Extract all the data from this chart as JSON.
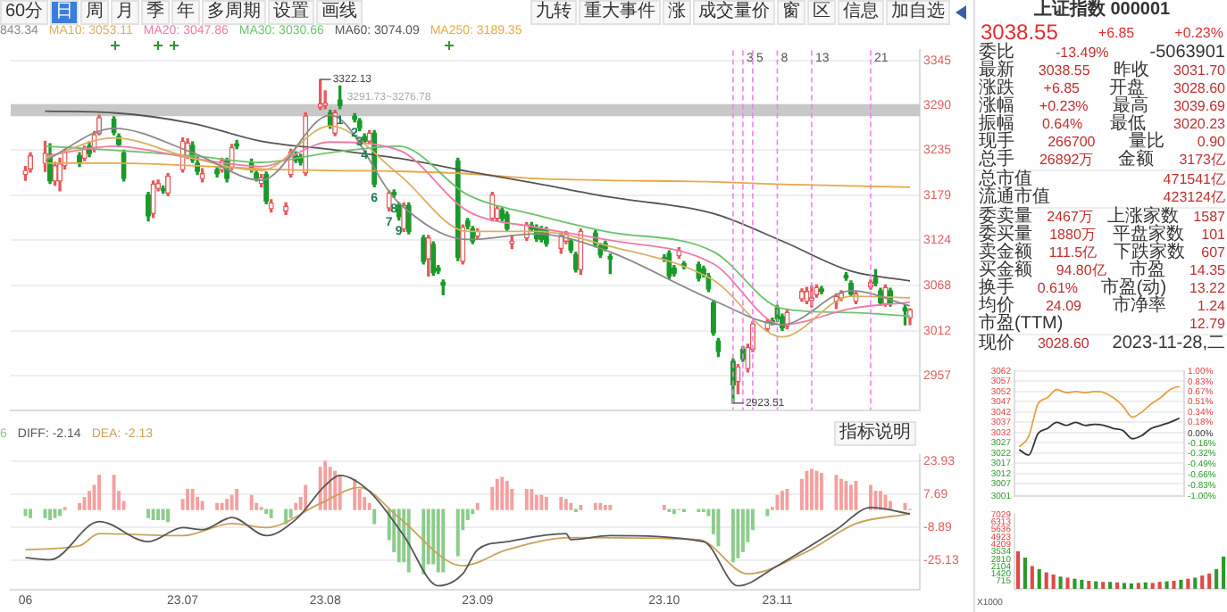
{
  "chart_data": [
    {
      "type": "other",
      "annotations": [
        "60分",
        "日",
        "周",
        "月",
        "季",
        "年",
        "多周期",
        "设置",
        "画线"
      ]
    },
    {
      "type": "other",
      "annotations": [
        "九转",
        "重大事件",
        "涨",
        "成交量价",
        "窗",
        "区",
        "信息",
        "加自选"
      ]
    },
    {
      "type": "candlestick",
      "legend": "top left",
      "grid": "y",
      "tick_labels": "y",
      "xlim": [
        "2023-05-29",
        "2023-11-30"
      ],
      "ylim": [
        2915,
        3358
      ],
      "yticks": [
        2957,
        3012,
        3068,
        3124,
        3179,
        3235,
        3290,
        3345
      ],
      "x": [
        "2023-06-01",
        "2023-06-02",
        "2023-06-05",
        "2023-06-06",
        "2023-06-07",
        "2023-06-08",
        "2023-06-09",
        "2023-06-12",
        "2023-06-13",
        "2023-06-14",
        "2023-06-15",
        "2023-06-16",
        "2023-06-19",
        "2023-06-20",
        "2023-06-21",
        "2023-06-26",
        "2023-06-27",
        "2023-06-28",
        "2023-06-29",
        "2023-06-30",
        "2023-07-03",
        "2023-07-04",
        "2023-07-05",
        "2023-07-06",
        "2023-07-07",
        "2023-07-10",
        "2023-07-11",
        "2023-07-12",
        "2023-07-13",
        "2023-07-14",
        "2023-07-17",
        "2023-07-18",
        "2023-07-19",
        "2023-07-20",
        "2023-07-21",
        "2023-07-24",
        "2023-07-25",
        "2023-07-26",
        "2023-07-27",
        "2023-07-28",
        "2023-07-31",
        "2023-08-01",
        "2023-08-02",
        "2023-08-03",
        "2023-08-04",
        "2023-08-07",
        "2023-08-08",
        "2023-08-09",
        "2023-08-10",
        "2023-08-11",
        "2023-08-14",
        "2023-08-15",
        "2023-08-16",
        "2023-08-17",
        "2023-08-18",
        "2023-08-21",
        "2023-08-22",
        "2023-08-23",
        "2023-08-24",
        "2023-08-25",
        "2023-08-28",
        "2023-08-29",
        "2023-08-30",
        "2023-08-31",
        "2023-09-01",
        "2023-09-04",
        "2023-09-05",
        "2023-09-06",
        "2023-09-07",
        "2023-09-08",
        "2023-09-11",
        "2023-09-12",
        "2023-09-13",
        "2023-09-14",
        "2023-09-15",
        "2023-09-18",
        "2023-09-19",
        "2023-09-20",
        "2023-09-21",
        "2023-09-22",
        "2023-09-25",
        "2023-09-26",
        "2023-09-27",
        "2023-09-28",
        "2023-10-09",
        "2023-10-10",
        "2023-10-11",
        "2023-10-12",
        "2023-10-13",
        "2023-10-16",
        "2023-10-17",
        "2023-10-18",
        "2023-10-19",
        "2023-10-20",
        "2023-10-23",
        "2023-10-24",
        "2023-10-25",
        "2023-10-26",
        "2023-10-27",
        "2023-10-30",
        "2023-10-31",
        "2023-11-01",
        "2023-11-02",
        "2023-11-03",
        "2023-11-06",
        "2023-11-07",
        "2023-11-08",
        "2023-11-09",
        "2023-11-10",
        "2023-11-13",
        "2023-11-14",
        "2023-11-15",
        "2023-11-16",
        "2023-11-17",
        "2023-11-20",
        "2023-11-21",
        "2023-11-22",
        "2023-11-23",
        "2023-11-24",
        "2023-11-27",
        "2023-11-28"
      ],
      "ohlc": [
        [
          3205,
          3215,
          3198,
          3210
        ],
        [
          3212,
          3232,
          3208,
          3228
        ],
        [
          3219,
          3246,
          3209,
          3231
        ],
        [
          3230,
          3243,
          3194,
          3197
        ],
        [
          3197,
          3220,
          3192,
          3216
        ],
        [
          3197,
          3225,
          3185,
          3218
        ],
        [
          3216,
          3236,
          3212,
          3232
        ],
        [
          3228,
          3232,
          3215,
          3219
        ],
        [
          3225,
          3240,
          3222,
          3236
        ],
        [
          3240,
          3245,
          3227,
          3231
        ],
        [
          3236,
          3258,
          3233,
          3254
        ],
        [
          3256,
          3278,
          3254,
          3275
        ],
        [
          3273,
          3276,
          3254,
          3257
        ],
        [
          3252,
          3255,
          3239,
          3242
        ],
        [
          3232,
          3235,
          3197,
          3200
        ],
        [
          3180,
          3183,
          3148,
          3154
        ],
        [
          3157,
          3197,
          3152,
          3193
        ],
        [
          3188,
          3198,
          3185,
          3194
        ],
        [
          3188,
          3191,
          3182,
          3185
        ],
        [
          3182,
          3206,
          3179,
          3203
        ],
        [
          3211,
          3250,
          3208,
          3246
        ],
        [
          3228,
          3249,
          3225,
          3244
        ],
        [
          3241,
          3245,
          3220,
          3223
        ],
        [
          3219,
          3226,
          3205,
          3209
        ],
        [
          3200,
          3212,
          3196,
          3206
        ],
        [
          3211,
          3214,
          3202,
          3206
        ],
        [
          3211,
          3225,
          3208,
          3222
        ],
        [
          3222,
          3225,
          3196,
          3200
        ],
        [
          3214,
          3242,
          3211,
          3238
        ],
        [
          3243,
          3247,
          3237,
          3240
        ],
        [
          3220,
          3224,
          3208,
          3212
        ],
        [
          3207,
          3211,
          3197,
          3201
        ],
        [
          3194,
          3205,
          3190,
          3201
        ],
        [
          3205,
          3208,
          3169,
          3172
        ],
        [
          3163,
          3174,
          3159,
          3170
        ],
        [
          3160,
          3170,
          3156,
          3166
        ],
        [
          3205,
          3236,
          3202,
          3233
        ],
        [
          3229,
          3233,
          3220,
          3223
        ],
        [
          3227,
          3230,
          3217,
          3220
        ],
        [
          3207,
          3281,
          3204,
          3277
        ],
        [
          3288,
          3322.13,
          3285,
          3292
        ],
        [
          3290,
          3308,
          3286,
          3293
        ],
        [
          3281,
          3284,
          3262,
          3265
        ],
        [
          3256,
          3284,
          3253,
          3281
        ],
        [
          3297,
          3314,
          3286,
          3290
        ],
        [
          3277,
          3280,
          3270,
          3273
        ],
        [
          3271,
          3274,
          3259,
          3262
        ],
        [
          3252,
          3255,
          3243,
          3246
        ],
        [
          3246,
          3259,
          3243,
          3256
        ],
        [
          3256,
          3259,
          3190,
          3193
        ],
        [
          3164,
          3185,
          3160,
          3182
        ],
        [
          3183,
          3186,
          3177,
          3180
        ],
        [
          3167,
          3170,
          3149,
          3153
        ],
        [
          3138,
          3170,
          3135,
          3167
        ],
        [
          3167,
          3170,
          3132,
          3135
        ],
        [
          3127,
          3130,
          3095,
          3098
        ],
        [
          3101,
          3130,
          3080,
          3127
        ],
        [
          3119,
          3122,
          3081,
          3084
        ],
        [
          3090,
          3093,
          3083,
          3086
        ],
        [
          3072,
          3075,
          3057,
          3069
        ],
        [
          3222,
          3225,
          3099,
          3103
        ],
        [
          3098,
          3143,
          3095,
          3140
        ],
        [
          3148,
          3151,
          3138,
          3141
        ],
        [
          3138,
          3141,
          3120,
          3123
        ],
        [
          3129,
          3138,
          3126,
          3135
        ],
        [
          3151,
          3183,
          3148,
          3180
        ],
        [
          3151,
          3166,
          3148,
          3163
        ],
        [
          3161,
          3164,
          3148,
          3151
        ],
        [
          3156,
          3159,
          3135,
          3138
        ],
        [
          3120,
          3130,
          3114,
          3123
        ],
        [
          3127,
          3146,
          3124,
          3143
        ],
        [
          3143,
          3146,
          3135,
          3138
        ],
        [
          3140,
          3143,
          3123,
          3126
        ],
        [
          3138,
          3141,
          3122,
          3125
        ],
        [
          3137,
          3140,
          3117,
          3120
        ],
        [
          3114,
          3133,
          3108,
          3130
        ],
        [
          3123,
          3135,
          3120,
          3132
        ],
        [
          3123,
          3126,
          3109,
          3112
        ],
        [
          3106,
          3109,
          3085,
          3088
        ],
        [
          3088,
          3138,
          3082,
          3135
        ],
        [
          3133,
          3136,
          3116,
          3119
        ],
        [
          3117,
          3120,
          3103,
          3106
        ],
        [
          3120,
          3123,
          3111,
          3114
        ],
        [
          3104,
          3107,
          3083,
          3101
        ],
        [
          3103,
          3106,
          3098,
          3101
        ],
        [
          3108,
          3111,
          3077,
          3080
        ],
        [
          3090,
          3093,
          3080,
          3083
        ],
        [
          3105,
          3115,
          3102,
          3111
        ],
        [
          3095,
          3098,
          3089,
          3092
        ],
        [
          3094,
          3097,
          3074,
          3077
        ],
        [
          3089,
          3092,
          3079,
          3082
        ],
        [
          3080,
          3083,
          3061,
          3064
        ],
        [
          3047,
          3050,
          3007,
          3010
        ],
        [
          3000,
          3003,
          2981,
          2987
        ],
        [
          2975,
          2978,
          2923.51,
          2946
        ],
        [
          2950,
          2971,
          2935,
          2968
        ],
        [
          2990,
          2993,
          2975,
          2978
        ],
        [
          2966,
          2996,
          2962,
          2992
        ],
        [
          2990,
          3024,
          2987,
          3021
        ],
        [
          3015,
          3027,
          3012,
          3024
        ],
        [
          3025,
          3028,
          3020,
          3023
        ],
        [
          3041,
          3044,
          3024,
          3027
        ],
        [
          3030,
          3033,
          3013,
          3016
        ],
        [
          3018,
          3038,
          3015,
          3035
        ],
        [
          3052,
          3064,
          3049,
          3061
        ],
        [
          3049,
          3066,
          3046,
          3061
        ],
        [
          3050,
          3068,
          3042,
          3053
        ],
        [
          3057,
          3069,
          3054,
          3066
        ],
        [
          3064,
          3067,
          3058,
          3061
        ],
        [
          3049,
          3058,
          3040,
          3055
        ],
        [
          3053,
          3062,
          3050,
          3059
        ],
        [
          3081,
          3084,
          3075,
          3078
        ],
        [
          3071,
          3074,
          3055,
          3058
        ],
        [
          3049,
          3061,
          3046,
          3058
        ],
        [
          3067,
          3075,
          3064,
          3072
        ],
        [
          3078,
          3088,
          3068,
          3071
        ],
        [
          3062,
          3065,
          3044,
          3047
        ],
        [
          3046,
          3069,
          3043,
          3066
        ],
        [
          3062,
          3065,
          3043,
          3046
        ],
        [
          3041,
          3044,
          3020,
          3037
        ],
        [
          3028.6,
          3039.69,
          3020.23,
          3038.55
        ]
      ],
      "series": [
        {
          "type": "line",
          "name": "843.34",
          "color": "#8a8a8a",
          "x": [
            "2023-06-05",
            "2023-06-19",
            "2023-07-05",
            "2023-07-19",
            "2023-08-02",
            "2023-08-16",
            "2023-08-30",
            "2023-09-13",
            "2023-09-27",
            "2023-10-19",
            "2023-11-02",
            "2023-11-16",
            "2023-11-28"
          ],
          "values": [
            3222,
            3262,
            3232,
            3198,
            3278,
            3170,
            3125,
            3132,
            3112,
            3050,
            3020,
            3062,
            3043.34
          ]
        },
        {
          "type": "line",
          "name": "MA10: 3053.11",
          "color": "#d8b060",
          "x": [
            "2023-06-05",
            "2023-06-19",
            "2023-07-05",
            "2023-07-19",
            "2023-08-02",
            "2023-08-16",
            "2023-08-30",
            "2023-09-13",
            "2023-09-27",
            "2023-10-19",
            "2023-11-02",
            "2023-11-16",
            "2023-11-28"
          ],
          "values": [
            3225,
            3250,
            3225,
            3210,
            3265,
            3205,
            3135,
            3135,
            3118,
            3075,
            3005,
            3055,
            3053.11
          ]
        },
        {
          "type": "line",
          "name": "MA20: 3047.86",
          "color": "#f07aa8",
          "x": [
            "2023-06-05",
            "2023-06-19",
            "2023-07-05",
            "2023-07-19",
            "2023-08-02",
            "2023-08-16",
            "2023-08-30",
            "2023-09-13",
            "2023-09-27",
            "2023-10-19",
            "2023-11-02",
            "2023-11-16",
            "2023-11-28"
          ],
          "values": [
            3228,
            3240,
            3225,
            3215,
            3245,
            3235,
            3160,
            3140,
            3125,
            3095,
            3020,
            3040,
            3047.86
          ]
        },
        {
          "type": "line",
          "name": "MA30: 3030.66",
          "color": "#6cc46c",
          "x": [
            "2023-06-05",
            "2023-06-19",
            "2023-07-05",
            "2023-07-19",
            "2023-08-02",
            "2023-08-16",
            "2023-08-30",
            "2023-09-13",
            "2023-09-27",
            "2023-10-19",
            "2023-11-02",
            "2023-11-16",
            "2023-11-28"
          ],
          "values": [
            3240,
            3235,
            3228,
            3220,
            3232,
            3240,
            3180,
            3155,
            3135,
            3110,
            3040,
            3035,
            3030.66
          ]
        },
        {
          "type": "line",
          "name": "MA60: 3074.09",
          "color": "#555555",
          "x": [
            "2023-06-05",
            "2023-06-19",
            "2023-07-05",
            "2023-07-19",
            "2023-08-02",
            "2023-08-16",
            "2023-08-30",
            "2023-09-13",
            "2023-09-27",
            "2023-10-19",
            "2023-11-02",
            "2023-11-16",
            "2023-11-28"
          ],
          "values": [
            3283,
            3281,
            3268,
            3246,
            3236,
            3225,
            3209,
            3194,
            3178,
            3157,
            3123,
            3086,
            3074.09
          ]
        },
        {
          "type": "line",
          "name": "MA250: 3189.35",
          "color": "#e8a848",
          "x": [
            "2023-06-05",
            "2023-06-19",
            "2023-07-05",
            "2023-07-19",
            "2023-08-02",
            "2023-08-16",
            "2023-08-30",
            "2023-09-13",
            "2023-09-27",
            "2023-10-19",
            "2023-11-02",
            "2023-11-16",
            "2023-11-28"
          ],
          "values": [
            3219,
            3219,
            3216,
            3212,
            3210,
            3209,
            3206,
            3200,
            3198,
            3196,
            3193,
            3191,
            3189.35
          ]
        }
      ],
      "bands": [
        {
          "axis": "y",
          "from": 3276.78,
          "to": 3291.73,
          "label": "3291.73~3276.78",
          "color": "#c8c8c8"
        }
      ],
      "ref_lines": [
        {
          "axis": "x",
          "value": "2023-10-23",
          "label": null,
          "color": "#ee82ee",
          "line_style": "dashed"
        },
        {
          "axis": "x",
          "value": "2023-10-25",
          "label": "3",
          "color": "#ee82ee",
          "line_style": "dashed"
        },
        {
          "axis": "x",
          "value": "2023-10-27",
          "label": "5",
          "color": "#ee82ee",
          "line_style": "dashed"
        },
        {
          "axis": "x",
          "value": "2023-11-01",
          "label": "8",
          "color": "#ee82ee",
          "line_style": "dashed"
        },
        {
          "axis": "x",
          "value": "2023-11-08",
          "label": "13",
          "color": "#ee82ee",
          "line_style": "dashed"
        },
        {
          "axis": "x",
          "value": "2023-11-20",
          "label": "21",
          "color": "#ee82ee",
          "line_style": "dashed"
        }
      ],
      "annotations": [
        {
          "text": "3322.13",
          "x": "2023-07-31",
          "y": 3322.13
        },
        {
          "text": "2923.51",
          "x": "2023-10-23",
          "y": 2923.51
        },
        {
          "text": "1",
          "x": "2023-08-04",
          "y": 3286
        },
        {
          "text": "2",
          "x": "2023-08-07",
          "y": 3270
        },
        {
          "text": "3",
          "x": "2023-08-08",
          "y": 3259
        },
        {
          "text": "4",
          "x": "2023-08-09",
          "y": 3243
        },
        {
          "text": "6",
          "x": "2023-08-11",
          "y": 3190
        },
        {
          "text": "7",
          "x": "2023-08-14",
          "y": 3160
        },
        {
          "text": "8",
          "x": "2023-08-15",
          "y": 3177
        },
        {
          "text": "9",
          "x": "2023-08-16",
          "y": 3149
        }
      ]
    },
    {
      "type": "bar",
      "legend": "top left",
      "grid": "y",
      "xlim": [
        "2023-05-29",
        "2023-11-30"
      ],
      "ylim": [
        -40,
        27
      ],
      "yticks": [
        -25.13,
        -8.89,
        7.69,
        23.93
      ],
      "annotations": [
        "指标说明"
      ],
      "x": [
        "2023-06-01",
        "2023-06-02",
        "2023-06-05",
        "2023-06-06",
        "2023-06-07",
        "2023-06-08",
        "2023-06-09",
        "2023-06-12",
        "2023-06-13",
        "2023-06-14",
        "2023-06-15",
        "2023-06-16",
        "2023-06-19",
        "2023-06-20",
        "2023-06-21",
        "2023-06-26",
        "2023-06-27",
        "2023-06-28",
        "2023-06-29",
        "2023-06-30",
        "2023-07-03",
        "2023-07-04",
        "2023-07-05",
        "2023-07-06",
        "2023-07-07",
        "2023-07-10",
        "2023-07-11",
        "2023-07-12",
        "2023-07-13",
        "2023-07-14",
        "2023-07-17",
        "2023-07-18",
        "2023-07-19",
        "2023-07-20",
        "2023-07-21",
        "2023-07-24",
        "2023-07-25",
        "2023-07-26",
        "2023-07-27",
        "2023-07-28",
        "2023-07-31",
        "2023-08-01",
        "2023-08-02",
        "2023-08-03",
        "2023-08-04",
        "2023-08-07",
        "2023-08-08",
        "2023-08-09",
        "2023-08-10",
        "2023-08-11",
        "2023-08-14",
        "2023-08-15",
        "2023-08-16",
        "2023-08-17",
        "2023-08-18",
        "2023-08-21",
        "2023-08-22",
        "2023-08-23",
        "2023-08-24",
        "2023-08-25",
        "2023-08-28",
        "2023-08-29",
        "2023-08-30",
        "2023-08-31",
        "2023-09-01",
        "2023-09-04",
        "2023-09-05",
        "2023-09-06",
        "2023-09-07",
        "2023-09-08",
        "2023-09-11",
        "2023-09-12",
        "2023-09-13",
        "2023-09-14",
        "2023-09-15",
        "2023-09-18",
        "2023-09-19",
        "2023-09-20",
        "2023-09-21",
        "2023-09-22",
        "2023-09-25",
        "2023-09-26",
        "2023-09-27",
        "2023-09-28",
        "2023-10-09",
        "2023-10-10",
        "2023-10-11",
        "2023-10-12",
        "2023-10-13",
        "2023-10-16",
        "2023-10-17",
        "2023-10-18",
        "2023-10-19",
        "2023-10-20",
        "2023-10-23",
        "2023-10-24",
        "2023-10-25",
        "2023-10-26",
        "2023-10-27",
        "2023-10-30",
        "2023-10-31",
        "2023-11-01",
        "2023-11-02",
        "2023-11-03",
        "2023-11-06",
        "2023-11-07",
        "2023-11-08",
        "2023-11-09",
        "2023-11-10",
        "2023-11-13",
        "2023-11-14",
        "2023-11-15",
        "2023-11-16",
        "2023-11-17",
        "2023-11-20",
        "2023-11-21",
        "2023-11-22",
        "2023-11-23",
        "2023-11-24",
        "2023-11-27",
        "2023-11-28"
      ],
      "xticks": [
        {
          "value": "2023-06-01",
          "label": "06"
        },
        {
          "value": "2023-07-03",
          "label": "23.07"
        },
        {
          "value": "2023-08-01",
          "label": "23.08"
        },
        {
          "value": "2023-09-01",
          "label": "23.09"
        },
        {
          "value": "2023-10-09",
          "label": "23.10"
        },
        {
          "value": "2023-11-01",
          "label": "23.11"
        }
      ],
      "series": [
        {
          "type": "bar",
          "name": "6",
          "color": "#8ccc8c",
          "values": [
            -3,
            -4,
            -4,
            -5,
            -4,
            -3,
            1,
            3,
            6,
            9,
            12,
            17,
            17,
            9,
            4,
            -4,
            -5,
            -5,
            -5,
            -6,
            5,
            10,
            10,
            6,
            4,
            3,
            3,
            5,
            7,
            10,
            7,
            3,
            1,
            -2,
            -4,
            -7,
            -4,
            3,
            6,
            12,
            21,
            24,
            21,
            19,
            17,
            15,
            10,
            6,
            3,
            -7,
            -15,
            -21,
            -26,
            -26,
            -31,
            -32,
            -27,
            -27,
            -31,
            -31,
            -23,
            -10,
            -5,
            -2,
            3,
            11,
            15,
            16,
            14,
            10,
            10,
            10,
            7,
            7,
            6,
            6,
            5,
            3,
            -1,
            2,
            3,
            3,
            2,
            2,
            2,
            -1,
            -2,
            0,
            -1,
            -1,
            -1,
            -3,
            -12,
            -18,
            -26,
            -24,
            -21,
            -16,
            -10,
            -3,
            1,
            7,
            9,
            10,
            15,
            19,
            20,
            19,
            18,
            17,
            15,
            14,
            12,
            14,
            12,
            9,
            9,
            7,
            4,
            3,
            0
          ],
          "colors": [
            "#8ccc8c",
            "#8ccc8c",
            "#8ccc8c",
            "#8ccc8c",
            "#8ccc8c",
            "#8ccc8c",
            "#f4a0a0",
            "#f4a0a0",
            "#f4a0a0",
            "#f4a0a0",
            "#f4a0a0",
            "#f4a0a0",
            "#f4a0a0",
            "#f4a0a0",
            "#f4a0a0",
            "#8ccc8c",
            "#8ccc8c",
            "#8ccc8c",
            "#8ccc8c",
            "#8ccc8c",
            "#f4a0a0",
            "#f4a0a0",
            "#f4a0a0",
            "#f4a0a0",
            "#f4a0a0",
            "#f4a0a0",
            "#f4a0a0",
            "#f4a0a0",
            "#f4a0a0",
            "#f4a0a0",
            "#f4a0a0",
            "#f4a0a0",
            "#f4a0a0",
            "#8ccc8c",
            "#8ccc8c",
            "#8ccc8c",
            "#8ccc8c",
            "#f4a0a0",
            "#f4a0a0",
            "#f4a0a0",
            "#f4a0a0",
            "#f4a0a0",
            "#f4a0a0",
            "#f4a0a0",
            "#f4a0a0",
            "#f4a0a0",
            "#f4a0a0",
            "#f4a0a0",
            "#f4a0a0",
            "#8ccc8c",
            "#8ccc8c",
            "#8ccc8c",
            "#8ccc8c",
            "#8ccc8c",
            "#8ccc8c",
            "#8ccc8c",
            "#8ccc8c",
            "#8ccc8c",
            "#8ccc8c",
            "#8ccc8c",
            "#8ccc8c",
            "#8ccc8c",
            "#8ccc8c",
            "#8ccc8c",
            "#f4a0a0",
            "#f4a0a0",
            "#f4a0a0",
            "#f4a0a0",
            "#f4a0a0",
            "#f4a0a0",
            "#f4a0a0",
            "#f4a0a0",
            "#f4a0a0",
            "#f4a0a0",
            "#f4a0a0",
            "#f4a0a0",
            "#f4a0a0",
            "#f4a0a0",
            "#8ccc8c",
            "#f4a0a0",
            "#f4a0a0",
            "#f4a0a0",
            "#f4a0a0",
            "#f4a0a0",
            "#f4a0a0",
            "#8ccc8c",
            "#8ccc8c",
            "#f4a0a0",
            "#8ccc8c",
            "#8ccc8c",
            "#8ccc8c",
            "#8ccc8c",
            "#8ccc8c",
            "#8ccc8c",
            "#8ccc8c",
            "#8ccc8c",
            "#8ccc8c",
            "#8ccc8c",
            "#8ccc8c",
            "#8ccc8c",
            "#f4a0a0",
            "#f4a0a0",
            "#f4a0a0",
            "#f4a0a0",
            "#f4a0a0",
            "#f4a0a0",
            "#f4a0a0",
            "#f4a0a0",
            "#f4a0a0",
            "#f4a0a0",
            "#f4a0a0",
            "#f4a0a0",
            "#f4a0a0",
            "#f4a0a0",
            "#f4a0a0",
            "#f4a0a0",
            "#f4a0a0",
            "#f4a0a0",
            "#f4a0a0",
            "#f4a0a0",
            "#f4a0a0"
          ]
        },
        {
          "type": "line",
          "name": "DIFF: -2.14",
          "color": "#555555",
          "x": [
            "2023-06-01",
            "2023-06-06",
            "2023-06-16",
            "2023-06-26",
            "2023-07-03",
            "2023-07-07",
            "2023-07-13",
            "2023-07-20",
            "2023-07-26",
            "2023-08-01",
            "2023-08-04",
            "2023-08-10",
            "2023-08-17",
            "2023-08-24",
            "2023-08-29",
            "2023-09-01",
            "2023-09-07",
            "2023-09-19",
            "2023-09-20",
            "2023-09-28",
            "2023-10-17",
            "2023-10-24",
            "2023-11-01",
            "2023-11-13",
            "2023-11-20",
            "2023-11-28"
          ],
          "values": [
            -24,
            -25,
            -6,
            -16,
            -9,
            -10,
            -4,
            -13,
            -5,
            12,
            17,
            9,
            -13,
            -38,
            -32,
            -20,
            -16,
            -12,
            -15,
            -13,
            -16,
            -38,
            -28,
            -10,
            1,
            -2.14
          ]
        },
        {
          "type": "line",
          "name": "DEA: -2.13",
          "color": "#c8a35a",
          "x": [
            "2023-06-01",
            "2023-06-12",
            "2023-06-16",
            "2023-07-03",
            "2023-07-13",
            "2023-07-20",
            "2023-07-31",
            "2023-08-08",
            "2023-08-16",
            "2023-08-29",
            "2023-09-07",
            "2023-09-20",
            "2023-10-16",
            "2023-10-26",
            "2023-11-07",
            "2023-11-17",
            "2023-11-28"
          ],
          "values": [
            -20,
            -18,
            -12,
            -13,
            -7,
            -9,
            3,
            11,
            -4,
            -28,
            -20,
            -14,
            -15,
            -32,
            -21,
            -7,
            -2.13
          ]
        }
      ]
    },
    {
      "type": "other",
      "title": "上证指数 000001",
      "subtitle": "3038.55  +6.85  +0.23%",
      "annotations": [
        "委比  -13.49%  -5063901",
        "最新  3038.55  昨收  3031.70",
        "涨跌  +6.85  开盘  3028.60",
        "涨幅  +0.23%  最高  3039.69",
        "振幅  0.64%  最低  3020.23",
        "现手  266700  量比  0.90",
        "总手  26892万  金额  3173亿",
        "总市值  471541亿",
        "流通市值  423124亿",
        "委卖量  2467万  上涨家数  1587",
        "委买量  1880万  平盘家数  101",
        "卖金额  111.5亿  下跌家数  607",
        "买金额  94.80亿  市盈  14.35",
        "换手  0.61%  市盈(动)  13.22",
        "均价  24.09  市净率  1.24",
        "市盈(TTM)  12.79",
        "现价  3028.60  2023-11-28,二"
      ]
    },
    {
      "type": "line",
      "grid": "y",
      "categories": [
        null,
        null,
        null,
        null,
        null,
        null,
        null,
        null,
        null,
        null,
        null,
        null,
        null,
        null,
        null,
        null,
        null,
        null
      ],
      "ylim": [
        3001,
        3062
      ],
      "yticks": [
        3001,
        3007,
        3012,
        3017,
        3022,
        3027,
        3032,
        3037,
        3042,
        3047,
        3052,
        3057,
        3062
      ],
      "y2lim": [
        -1,
        1
      ],
      "y2ticks": [
        {
          "value": -1,
          "label": "-1.00%"
        },
        {
          "value": -0.83,
          "label": "-0.83%"
        },
        {
          "value": -0.66,
          "label": "-0.66%"
        },
        {
          "value": -0.49,
          "label": "-0.49%"
        },
        {
          "value": -0.32,
          "label": "-0.32%"
        },
        {
          "value": -0.16,
          "label": "-0.16%"
        },
        {
          "value": 0,
          "label": "0.00%"
        },
        {
          "value": 0.18,
          "label": "0.18%"
        },
        {
          "value": 0.34,
          "label": "0.34%"
        },
        {
          "value": 0.51,
          "label": "0.51%"
        },
        {
          "value": 0.67,
          "label": "0.67%"
        },
        {
          "value": 0.83,
          "label": "0.83%"
        },
        {
          "value": 1,
          "label": "1.00%"
        }
      ],
      "series": [
        {
          "color": "#333333",
          "values": [
            3023.6,
            3021,
            3031.5,
            3034,
            3037,
            3035.5,
            3037,
            3035.5,
            3036,
            3035.5,
            3034,
            3033,
            3029,
            3030.5,
            3034,
            3035.5,
            3037,
            3039
          ]
        },
        {
          "color": "#e8a040",
          "values": [
            3025,
            3030,
            3046,
            3049,
            3053,
            3051.5,
            3052,
            3051.5,
            3052,
            3051.5,
            3049,
            3045,
            3039.5,
            3042,
            3046,
            3049,
            3053,
            3054.6
          ]
        }
      ]
    },
    {
      "type": "bar",
      "ylabel": "X1000",
      "categories": [
        null,
        null,
        null,
        null,
        null,
        null,
        null,
        null,
        null,
        null,
        null,
        null,
        null,
        null,
        null,
        null,
        null,
        null,
        null,
        null,
        null,
        null,
        null,
        null,
        null,
        null,
        null,
        null,
        null,
        null
      ],
      "ylim": [
        0,
        7100
      ],
      "yticks": [
        715,
        1420,
        2104,
        2810,
        3534,
        4209,
        4923,
        5636,
        6313,
        7029
      ],
      "values": [
        3500,
        2900,
        2100,
        1800,
        1500,
        1300,
        1100,
        1000,
        900,
        800,
        700,
        650,
        600,
        600,
        550,
        500,
        450,
        500,
        550,
        500,
        600,
        650,
        700,
        800,
        900,
        1000,
        1200,
        1400,
        1800,
        3000
      ],
      "colors": [
        "#e04848",
        "#2a9a2a",
        "#e04848",
        "#2a9a2a",
        "#e04848",
        "#e04848",
        "#2a9a2a",
        "#e04848",
        "#2a9a2a",
        "#2a9a2a",
        "#e04848",
        "#2a9a2a",
        "#e04848",
        "#2a9a2a",
        "#e04848",
        "#2a9a2a",
        "#2a9a2a",
        "#e04848",
        "#2a9a2a",
        "#e04848",
        "#e04848",
        "#2a9a2a",
        "#e04848",
        "#2a9a2a",
        "#e04848",
        "#2a9a2a",
        "#e04848",
        "#e04848",
        "#2a9a2a",
        "#2a9a2a"
      ]
    }
  ]
}
